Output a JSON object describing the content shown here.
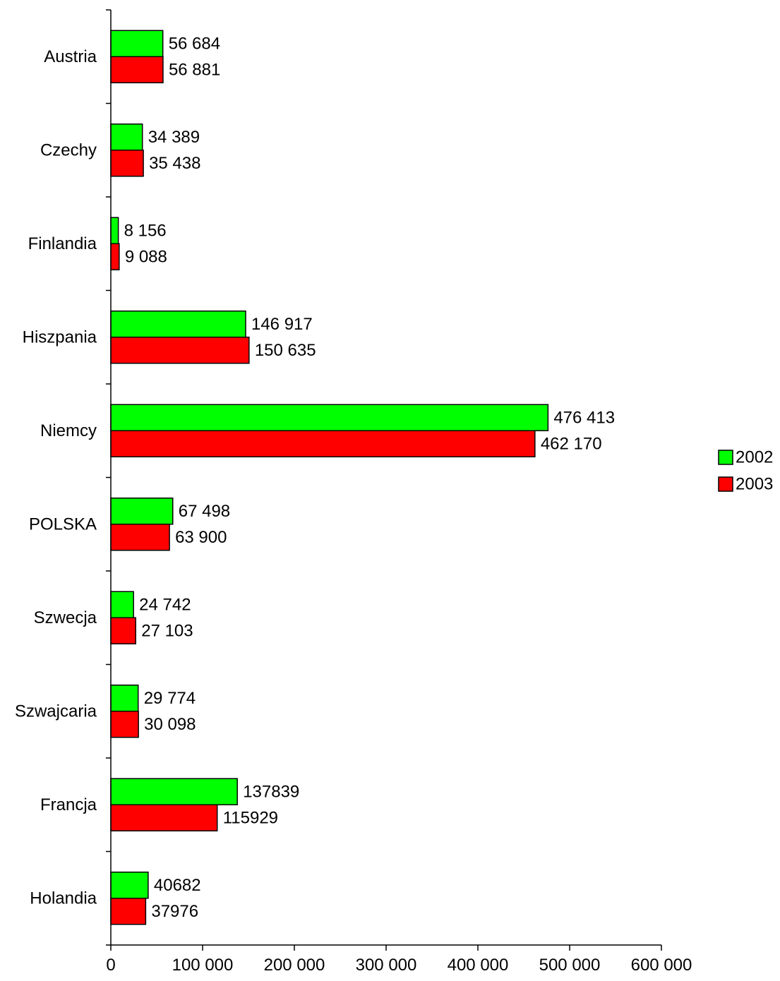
{
  "chart_data": {
    "type": "bar",
    "orientation": "horizontal",
    "title": "",
    "xlabel": "",
    "ylabel": "",
    "xlim": [
      0,
      600000
    ],
    "grid": false,
    "legend_position": "right",
    "categories": [
      "Austria",
      "Czechy",
      "Finlandia",
      "Hiszpania",
      "Niemcy",
      "POLSKA",
      "Szwecja",
      "Szwajcaria",
      "Francja",
      "Holandia"
    ],
    "x_ticks": [
      {
        "value": 0,
        "label": "0"
      },
      {
        "value": 100000,
        "label": "100 000"
      },
      {
        "value": 200000,
        "label": "200 000"
      },
      {
        "value": 300000,
        "label": "300 000"
      },
      {
        "value": 400000,
        "label": "400 000"
      },
      {
        "value": 500000,
        "label": "500 000"
      },
      {
        "value": 600000,
        "label": "600 000"
      }
    ],
    "series": [
      {
        "name": "2002",
        "color": "#00ff00",
        "values": [
          56684,
          34389,
          8156,
          146917,
          476413,
          67498,
          24742,
          29774,
          137839,
          40682
        ],
        "labels": [
          "56 684",
          "34 389",
          "8 156",
          "146 917",
          "476 413",
          "67 498",
          "24 742",
          "29 774",
          "137839",
          "40682"
        ]
      },
      {
        "name": "2003",
        "color": "#ff0000",
        "values": [
          56881,
          35438,
          9088,
          150635,
          462170,
          63900,
          27103,
          30098,
          115929,
          37976
        ],
        "labels": [
          "56 881",
          "35 438",
          "9 088",
          "150 635",
          "462 170",
          "63 900",
          "27 103",
          "30 098",
          "115929",
          "37976"
        ]
      }
    ]
  }
}
